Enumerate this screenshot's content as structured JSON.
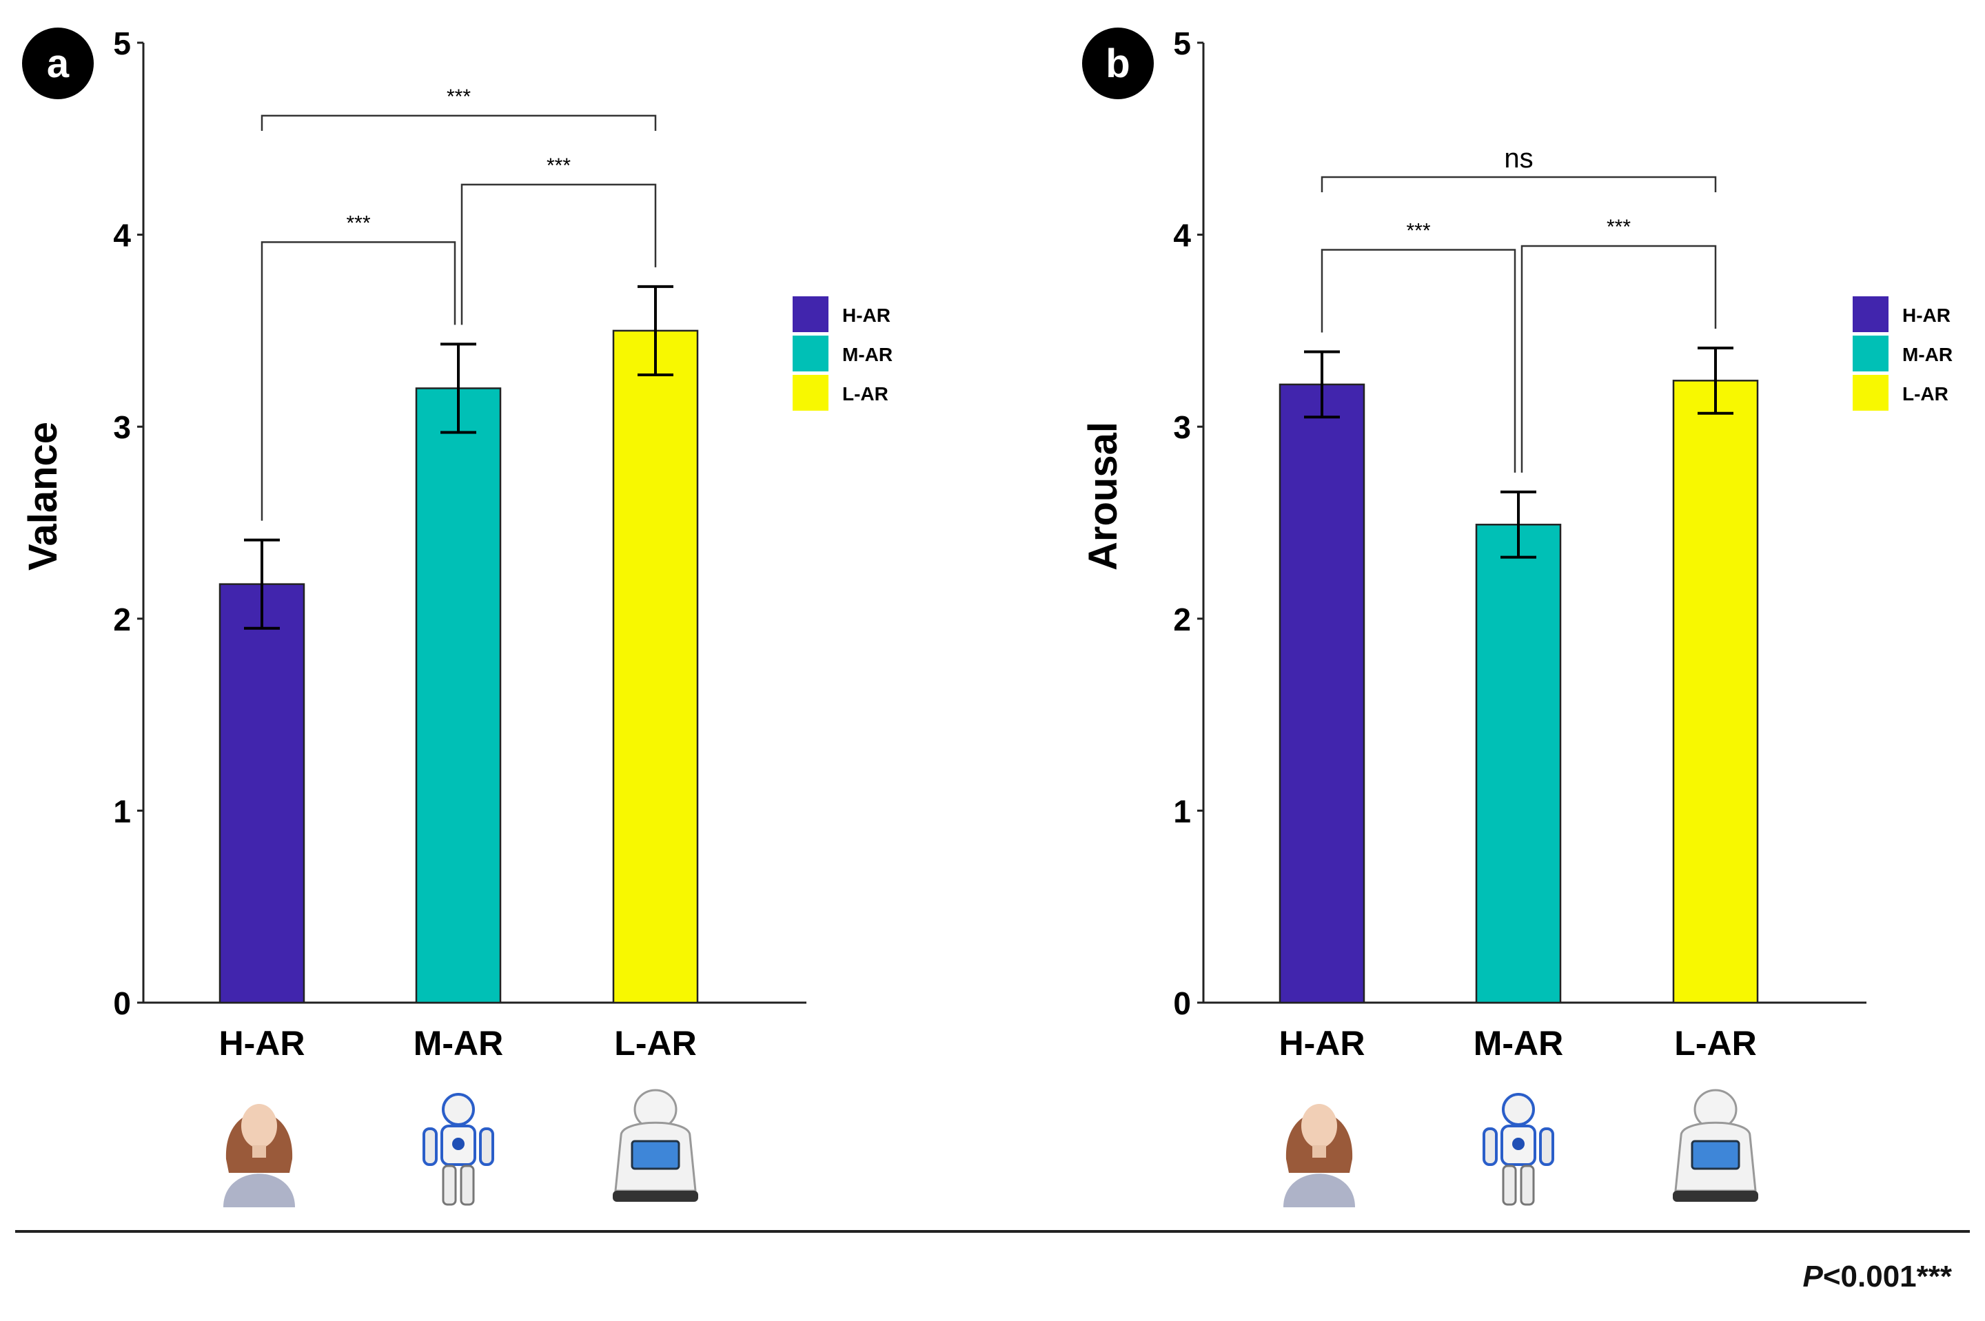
{
  "footnote": {
    "p_label": "P",
    "rest": "<0.001***"
  },
  "legend_colors": {
    "H-AR": "#4125AD",
    "M-AR": "#00C0B6",
    "L-AR": "#F8F800"
  },
  "chart_data": [
    {
      "panel_label": "a",
      "type": "bar",
      "title": "",
      "xlabel": "",
      "ylabel": "Valance",
      "ylim": [
        0,
        5
      ],
      "yticks": [
        "0",
        "1",
        "2",
        "3",
        "4",
        "5"
      ],
      "grid": false,
      "categories": [
        "H-AR",
        "M-AR",
        "L-AR"
      ],
      "values": [
        2.18,
        3.2,
        3.5
      ],
      "errors": [
        0.23,
        0.23,
        0.23
      ],
      "colors": [
        "#4125AD",
        "#00C0B6",
        "#F8F800"
      ],
      "legend": [
        "H-AR",
        "M-AR",
        "L-AR"
      ],
      "legend_position": "right",
      "images": [
        "female-android",
        "humanoid-robot",
        "service-robot"
      ],
      "significance": [
        {
          "from": 0,
          "to": 2,
          "label": "***"
        },
        {
          "from": 0,
          "to": 1,
          "label": "***"
        },
        {
          "from": 1,
          "to": 2,
          "label": "***"
        }
      ]
    },
    {
      "panel_label": "b",
      "type": "bar",
      "title": "",
      "xlabel": "",
      "ylabel": "Arousal",
      "ylim": [
        0,
        5
      ],
      "yticks": [
        "0",
        "1",
        "2",
        "3",
        "4",
        "5"
      ],
      "grid": false,
      "categories": [
        "H-AR",
        "M-AR",
        "L-AR"
      ],
      "values": [
        3.22,
        2.49,
        3.24
      ],
      "errors": [
        0.17,
        0.17,
        0.17
      ],
      "colors": [
        "#4125AD",
        "#00C0B6",
        "#F8F800"
      ],
      "legend": [
        "H-AR",
        "M-AR",
        "L-AR"
      ],
      "legend_position": "right",
      "images": [
        "female-android",
        "humanoid-robot",
        "service-robot"
      ],
      "significance": [
        {
          "from": 0,
          "to": 2,
          "label": "ns"
        },
        {
          "from": 0,
          "to": 1,
          "label": "***"
        },
        {
          "from": 1,
          "to": 2,
          "label": "***"
        }
      ]
    }
  ]
}
